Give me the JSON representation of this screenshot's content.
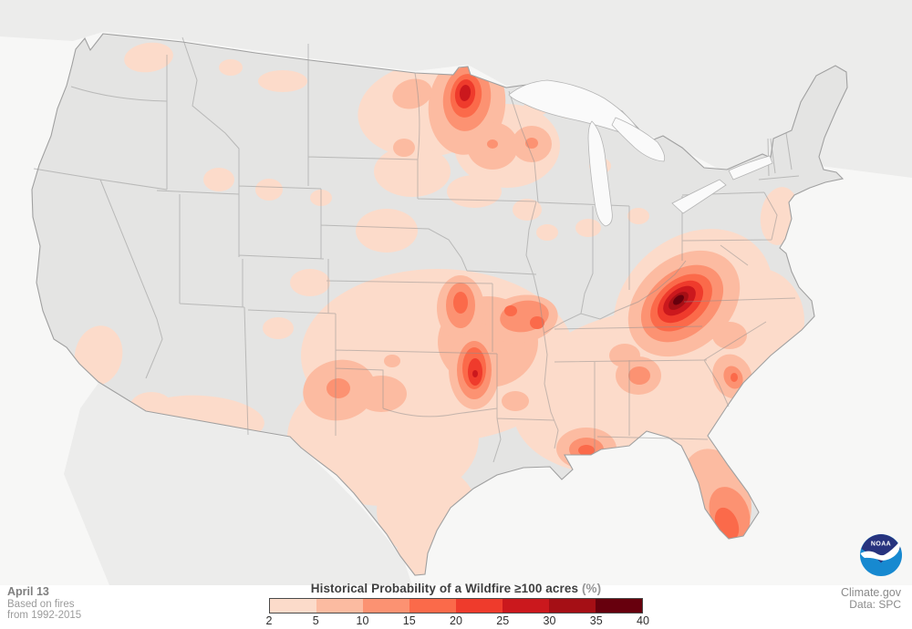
{
  "footer": {
    "date_label": "April 13",
    "based_on_line1": "Based on fires",
    "based_on_line2": "from 1992-2015",
    "credit_site": "Climate.gov",
    "credit_data": "Data: SPC",
    "noaa_logo_text": "NOAA"
  },
  "legend": {
    "title_main": "Historical Probability of a Wildfire ≥100 acres",
    "title_unit": "(%)",
    "tick_labels": [
      "2",
      "5",
      "10",
      "15",
      "20",
      "25",
      "30",
      "35",
      "40"
    ],
    "band_colors": [
      "#fcdbca",
      "#fcbba1",
      "#fc9272",
      "#fb6a4a",
      "#ef3b2c",
      "#cb181d",
      "#a50f15",
      "#67000d"
    ],
    "band_ranges": [
      "2-5",
      "5-10",
      "10-15",
      "15-20",
      "20-25",
      "25-30",
      "30-35",
      "35-40"
    ]
  },
  "map_data": {
    "type": "heatmap",
    "description": "Contour map of continental US showing historical probability (%) of a wildfire of at least 100 acres on April 13, based on fires 1992-2015",
    "value_range": [
      2,
      40
    ],
    "hotspots": [
      {
        "name": "Central Appalachians (KY/VA/WV/TN border)",
        "max_band": "35-40"
      },
      {
        "name": "Northern Minnesota",
        "max_band": "25-30"
      },
      {
        "name": "Southeastern Oklahoma",
        "max_band": "25-30"
      },
      {
        "name": "Southeast Kansas",
        "max_band": "15-20"
      },
      {
        "name": "Southern Missouri",
        "max_band": "15-20"
      },
      {
        "name": "Gulf Coast - S Louisiana/Mississippi",
        "max_band": "15-20"
      },
      {
        "name": "South Florida",
        "max_band": "15-20"
      },
      {
        "name": "Texas Panhandle",
        "max_band": "10-15"
      },
      {
        "name": "Northeast Georgia",
        "max_band": "10-15"
      },
      {
        "name": "Coastal South Carolina",
        "max_band": "15-20"
      },
      {
        "name": "Northern Wisconsin",
        "max_band": "10-15"
      }
    ],
    "colors": {
      "ocean": "#f7f7f6",
      "neighbor_land": "#ececeb",
      "us_land": "#e4e4e3",
      "state_lines": "#8e8e8e",
      "national_outline": "#a0a0a0",
      "lakes": "#fafafa"
    },
    "blobs": [
      [
        0,
        470,
        120,
        78,
        52,
        -8
      ],
      [
        0,
        556,
        160,
        58,
        46,
        0
      ],
      [
        0,
        452,
        188,
        42,
        28,
        0
      ],
      [
        0,
        520,
        210,
        30,
        18,
        0
      ],
      [
        0,
        578,
        230,
        16,
        12,
        0
      ],
      [
        0,
        163,
        63,
        27,
        16,
        -8
      ],
      [
        0,
        253,
        74,
        13,
        9,
        0
      ],
      [
        0,
        310,
        89,
        27,
        12,
        0
      ],
      [
        0,
        240,
        197,
        17,
        13,
        0
      ],
      [
        0,
        295,
        208,
        15,
        12,
        0
      ],
      [
        0,
        352,
        217,
        12,
        9,
        0
      ],
      [
        0,
        424,
        253,
        34,
        24,
        0
      ],
      [
        0,
        340,
        310,
        22,
        15,
        0
      ],
      [
        0,
        305,
        360,
        17,
        12,
        0
      ],
      [
        0,
        360,
        352,
        13,
        9,
        0
      ],
      [
        0,
        480,
        390,
        150,
        95,
        0
      ],
      [
        0,
        420,
        480,
        105,
        75,
        0
      ],
      [
        0,
        468,
        560,
        55,
        50,
        0
      ],
      [
        0,
        463,
        608,
        28,
        32,
        0
      ],
      [
        0,
        222,
        460,
        68,
        26,
        4
      ],
      [
        0,
        166,
        447,
        24,
        17,
        0
      ],
      [
        0,
        108,
        390,
        26,
        33,
        12
      ],
      [
        0,
        700,
        430,
        140,
        88,
        -12
      ],
      [
        0,
        772,
        520,
        52,
        68,
        -18
      ],
      [
        0,
        830,
        352,
        52,
        58,
        0
      ],
      [
        0,
        760,
        335,
        95,
        75,
        -40
      ],
      [
        0,
        855,
        237,
        21,
        32,
        8
      ],
      [
        0,
        645,
        250,
        14,
        10,
        0
      ],
      [
        0,
        700,
        237,
        12,
        9,
        0
      ],
      [
        0,
        622,
        122,
        10,
        8,
        0
      ],
      [
        0,
        658,
        182,
        12,
        9,
        0
      ],
      [
        0,
        600,
        255,
        12,
        9,
        0
      ],
      [
        0,
        588,
        118,
        14,
        9,
        0
      ],
      [
        1,
        512,
        115,
        42,
        55,
        8
      ],
      [
        1,
        540,
        160,
        28,
        26,
        0
      ],
      [
        1,
        583,
        158,
        22,
        20,
        0
      ],
      [
        1,
        452,
        103,
        22,
        16,
        -15
      ],
      [
        1,
        443,
        162,
        12,
        10,
        0
      ],
      [
        1,
        535,
        375,
        55,
        50,
        0
      ],
      [
        1,
        505,
        338,
        26,
        36,
        0
      ],
      [
        1,
        520,
        405,
        28,
        44,
        0
      ],
      [
        1,
        572,
        350,
        40,
        26,
        -10
      ],
      [
        1,
        372,
        428,
        40,
        33,
        -12
      ],
      [
        1,
        418,
        432,
        28,
        20,
        0
      ],
      [
        1,
        430,
        396,
        9,
        7,
        0
      ],
      [
        1,
        750,
        333,
        68,
        50,
        -40
      ],
      [
        1,
        700,
        412,
        25,
        21,
        0
      ],
      [
        1,
        803,
        413,
        21,
        25,
        -25
      ],
      [
        1,
        800,
        368,
        19,
        15,
        0
      ],
      [
        1,
        643,
        492,
        33,
        23,
        0
      ],
      [
        1,
        720,
        497,
        12,
        9,
        0
      ],
      [
        1,
        785,
        545,
        37,
        54,
        -18
      ],
      [
        1,
        685,
        390,
        17,
        13,
        0
      ],
      [
        1,
        565,
        440,
        15,
        11,
        0
      ],
      [
        2,
        512,
        108,
        26,
        36,
        8
      ],
      [
        2,
        583,
        157,
        7,
        6,
        0
      ],
      [
        2,
        540,
        158,
        6,
        5,
        0
      ],
      [
        2,
        505,
        335,
        16,
        25,
        0
      ],
      [
        2,
        520,
        406,
        19,
        32,
        0
      ],
      [
        2,
        575,
        347,
        27,
        17,
        -10
      ],
      [
        2,
        371,
        426,
        13,
        11,
        0
      ],
      [
        2,
        748,
        333,
        51,
        35,
        -40
      ],
      [
        2,
        701,
        412,
        12,
        10,
        0
      ],
      [
        2,
        804,
        414,
        10,
        13,
        -25
      ],
      [
        2,
        643,
        493,
        19,
        13,
        0
      ],
      [
        2,
        800,
        563,
        21,
        30,
        -22
      ],
      [
        3,
        511,
        105,
        17,
        24,
        8
      ],
      [
        3,
        505,
        332,
        8,
        12,
        0
      ],
      [
        3,
        520,
        404,
        13,
        23,
        0
      ],
      [
        3,
        560,
        341,
        7,
        6,
        0
      ],
      [
        3,
        589,
        354,
        8,
        7,
        0
      ],
      [
        3,
        747,
        332,
        39,
        25,
        -40
      ],
      [
        3,
        643,
        494,
        9,
        6,
        0
      ],
      [
        3,
        797,
        575,
        12,
        19,
        -22
      ],
      [
        3,
        805,
        414,
        4,
        5,
        0
      ],
      [
        4,
        510,
        103,
        11,
        16,
        8
      ],
      [
        4,
        521,
        408,
        8,
        15,
        0
      ],
      [
        4,
        746,
        331,
        29,
        18,
        -40
      ],
      [
        5,
        510,
        102,
        6,
        9,
        8
      ],
      [
        5,
        521,
        410,
        3,
        4,
        0
      ],
      [
        5,
        745,
        330,
        21,
        12,
        -40
      ],
      [
        6,
        744,
        330,
        13,
        7,
        -40
      ],
      [
        7,
        744,
        329,
        7,
        4,
        -40
      ]
    ]
  }
}
